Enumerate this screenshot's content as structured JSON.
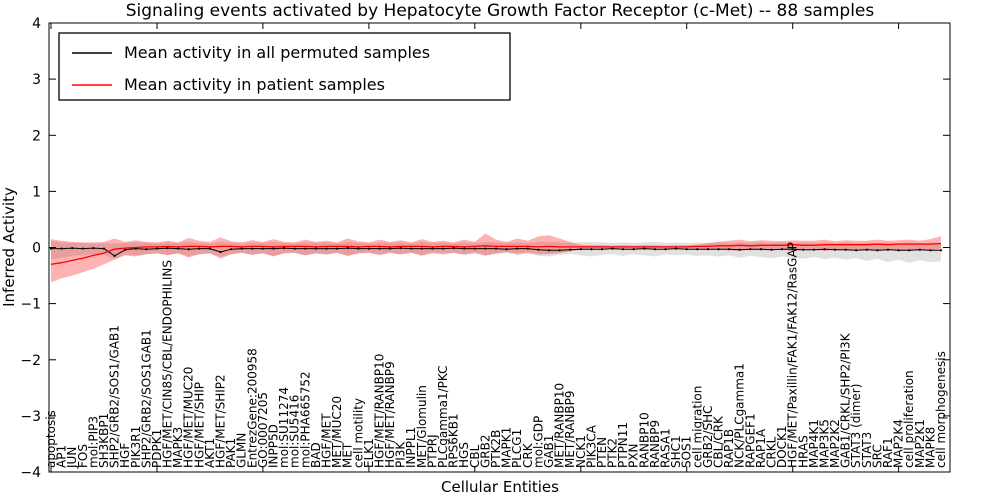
{
  "legend": {
    "items": [
      {
        "label": "Mean activity in all permuted samples",
        "color": "#000000"
      },
      {
        "label": "Mean activity in patient samples",
        "color": "#ff0000"
      }
    ]
  },
  "chart_data": {
    "type": "line",
    "title": "Signaling events activated by Hepatocyte Growth Factor Receptor (c-Met) -- 88 samples",
    "xlabel": "Cellular Entities",
    "ylabel": "Inferred Activity",
    "ylim": [
      -4,
      4
    ],
    "yticks": [
      4,
      3,
      2,
      1,
      0,
      -1,
      -2,
      -3,
      -4
    ],
    "ytick_labels": [
      "4",
      "3",
      "2",
      "1",
      "0",
      "−1",
      "−2",
      "−3",
      "−4"
    ],
    "x_major_tick_every": 10,
    "grid": false,
    "legend_position": "upper left",
    "band_colors": {
      "permuted": "#a8a8a8",
      "patient": "#ff0000"
    },
    "categories": [
      "apoptosis",
      "AP1",
      "JUN",
      "FOS",
      "mol:PIP3",
      "SH3KBP1",
      "SHP2/GRB2/SOS1/GAB1",
      "HGF",
      "PIK3R1",
      "SHP2/GRB2/SOS1GAB1",
      "PDPK1",
      "HGF/MET/CIN85/CBL/ENDOPHILINS",
      "MAPK3",
      "HGF/MET/MUC20",
      "HGF/MET/SHIP",
      "AKT1",
      "HGF/MET/SHIP2",
      "PAK1",
      "GLMN",
      "EntrezGene:200958",
      "GO:0007205",
      "INPP5D",
      "mol:SU11274",
      "mol:SU5416",
      "mol:PHA665752",
      "BAD",
      "HGF/MET",
      "MET/MUC20",
      "MET",
      "cell motility",
      "ELK1",
      "HGF/MET/RANBP10",
      "HGF/MET/RANBP9",
      "PI3K",
      "INPPL1",
      "MET/Glomulin",
      "PTPRJ",
      "PLCgamma1/PKC",
      "RPS6KB1",
      "HGS",
      "CBL",
      "GRB2",
      "PTK2B",
      "MAPK1",
      "PLCG1",
      "CRK",
      "mol:GDP",
      "GAB1",
      "MET/RANBP10",
      "MET/RANBP9",
      "NCK1",
      "PIK3CA",
      "PTEN",
      "PTK2",
      "PTPN11",
      "PXN",
      "RANBP10",
      "RANBP9",
      "RASA1",
      "SHC1",
      "SOS1",
      "cell migration",
      "GRB2/SHC",
      "CBL/CRK",
      "RAP1B",
      "NCK/PLCgamma1",
      "RAPGEF1",
      "RAP1A",
      "CRKL",
      "DOCK1",
      "HGF/MET/Paxillin/FAK1/FAK12/RasGAP",
      "HRAS",
      "MAP4K1",
      "MAP3K5",
      "MAP2K2",
      "GAB1/CRKL/SHP2/PI3K",
      "STAT3 (dimer)",
      "STAT3",
      "SRC",
      "RAF1",
      "MAP2K4",
      "cell proliferation",
      "MAP2K1",
      "MAPK8",
      "cell morphogenesis"
    ],
    "series": [
      {
        "name": "Mean activity in all permuted samples",
        "color": "#000000",
        "markers": true,
        "values": [
          -0.02,
          -0.02,
          -0.01,
          -0.02,
          -0.01,
          -0.02,
          -0.15,
          -0.04,
          -0.02,
          -0.03,
          -0.02,
          -0.01,
          -0.02,
          -0.03,
          -0.02,
          -0.02,
          -0.08,
          -0.03,
          -0.02,
          -0.02,
          -0.02,
          -0.02,
          -0.01,
          -0.02,
          -0.02,
          -0.02,
          -0.02,
          -0.02,
          -0.01,
          -0.02,
          -0.02,
          -0.02,
          -0.02,
          -0.01,
          -0.02,
          -0.02,
          -0.02,
          -0.02,
          -0.01,
          -0.02,
          -0.02,
          -0.02,
          -0.02,
          -0.03,
          -0.02,
          -0.02,
          -0.04,
          -0.05,
          -0.05,
          -0.04,
          -0.03,
          -0.03,
          -0.03,
          -0.02,
          -0.03,
          -0.03,
          -0.02,
          -0.03,
          -0.03,
          -0.02,
          -0.03,
          -0.03,
          -0.03,
          -0.03,
          -0.03,
          -0.04,
          -0.03,
          -0.03,
          -0.04,
          -0.03,
          -0.03,
          -0.04,
          -0.04,
          -0.03,
          -0.04,
          -0.04,
          -0.05,
          -0.04,
          -0.05,
          -0.04,
          -0.05,
          -0.05,
          -0.04,
          -0.05,
          -0.05
        ]
      },
      {
        "name": "Mean activity in patient samples",
        "color": "#ff0000",
        "markers": false,
        "values": [
          -0.3,
          -0.27,
          -0.23,
          -0.19,
          -0.14,
          -0.1,
          -0.03,
          -0.01,
          0.0,
          0.01,
          0.01,
          0.02,
          0.01,
          0.02,
          0.02,
          0.01,
          0.02,
          0.02,
          0.01,
          0.02,
          0.02,
          0.01,
          0.02,
          0.02,
          0.02,
          0.01,
          0.02,
          0.02,
          0.02,
          0.01,
          0.02,
          0.02,
          0.01,
          0.02,
          0.02,
          0.02,
          0.01,
          0.02,
          0.02,
          0.01,
          0.02,
          0.03,
          0.02,
          0.02,
          0.02,
          0.02,
          0.01,
          0.02,
          0.01,
          0.01,
          0.01,
          0.01,
          0.01,
          0.01,
          0.01,
          0.01,
          0.01,
          0.01,
          0.01,
          0.01,
          0.01,
          0.02,
          0.02,
          0.03,
          0.03,
          0.04,
          0.03,
          0.04,
          0.04,
          0.04,
          0.05,
          0.04,
          0.04,
          0.05,
          0.05,
          0.05,
          0.05,
          0.05,
          0.06,
          0.05,
          0.06,
          0.06,
          0.06,
          0.06,
          0.07
        ]
      }
    ],
    "bands": [
      {
        "name": "permuted-range",
        "color": "#a8a8a8",
        "opacity": 0.35,
        "hi": [
          0.12,
          0.09,
          0.08,
          0.08,
          0.07,
          0.08,
          0.07,
          0.08,
          0.09,
          0.08,
          0.07,
          0.09,
          0.08,
          0.1,
          0.08,
          0.07,
          0.1,
          0.08,
          0.07,
          0.09,
          0.08,
          0.1,
          0.08,
          0.07,
          0.09,
          0.08,
          0.09,
          0.07,
          0.1,
          0.08,
          0.07,
          0.09,
          0.08,
          0.09,
          0.07,
          0.1,
          0.08,
          0.09,
          0.07,
          0.09,
          0.08,
          0.1,
          0.09,
          0.08,
          0.09,
          0.08,
          0.1,
          0.1,
          0.09,
          0.08,
          0.09,
          0.1,
          0.09,
          0.08,
          0.09,
          0.08,
          0.09,
          0.1,
          0.08,
          0.09,
          0.08,
          0.09,
          0.08,
          0.09,
          0.08,
          0.09,
          0.08,
          0.09,
          0.08,
          0.09,
          0.08,
          0.09,
          0.08,
          0.09,
          0.08,
          0.09,
          0.08,
          0.09,
          0.08,
          0.09,
          0.08,
          0.09,
          0.08,
          0.09,
          0.09
        ],
        "lo": [
          -0.22,
          -0.18,
          -0.15,
          -0.14,
          -0.12,
          -0.13,
          -0.2,
          -0.12,
          -0.14,
          -0.12,
          -0.11,
          -0.13,
          -0.11,
          -0.15,
          -0.12,
          -0.11,
          -0.16,
          -0.12,
          -0.1,
          -0.13,
          -0.11,
          -0.15,
          -0.11,
          -0.1,
          -0.14,
          -0.11,
          -0.13,
          -0.1,
          -0.15,
          -0.11,
          -0.1,
          -0.14,
          -0.1,
          -0.13,
          -0.1,
          -0.15,
          -0.11,
          -0.13,
          -0.1,
          -0.14,
          -0.11,
          -0.15,
          -0.12,
          -0.1,
          -0.14,
          -0.11,
          -0.15,
          -0.16,
          -0.13,
          -0.11,
          -0.14,
          -0.16,
          -0.13,
          -0.12,
          -0.15,
          -0.12,
          -0.14,
          -0.16,
          -0.12,
          -0.14,
          -0.13,
          -0.15,
          -0.14,
          -0.16,
          -0.14,
          -0.18,
          -0.15,
          -0.17,
          -0.19,
          -0.16,
          -0.18,
          -0.2,
          -0.17,
          -0.21,
          -0.18,
          -0.22,
          -0.19,
          -0.24,
          -0.2,
          -0.26,
          -0.22,
          -0.27,
          -0.23,
          -0.26,
          -0.25
        ]
      },
      {
        "name": "patient-range",
        "color": "#ff0000",
        "opacity": 0.3,
        "hi": [
          0.15,
          0.12,
          0.1,
          0.09,
          0.09,
          0.1,
          0.16,
          0.1,
          0.13,
          0.1,
          0.09,
          0.12,
          0.09,
          0.17,
          0.12,
          0.1,
          0.18,
          0.11,
          0.09,
          0.13,
          0.1,
          0.15,
          0.1,
          0.09,
          0.14,
          0.1,
          0.12,
          0.09,
          0.16,
          0.11,
          0.09,
          0.14,
          0.1,
          0.13,
          0.09,
          0.15,
          0.1,
          0.12,
          0.09,
          0.14,
          0.1,
          0.25,
          0.14,
          0.1,
          0.16,
          0.12,
          0.2,
          0.22,
          0.16,
          0.1,
          0.05,
          0.04,
          0.04,
          0.03,
          0.04,
          0.03,
          0.04,
          0.04,
          0.03,
          0.04,
          0.04,
          0.05,
          0.08,
          0.1,
          0.12,
          0.14,
          0.11,
          0.13,
          0.12,
          0.11,
          0.13,
          0.12,
          0.12,
          0.14,
          0.11,
          0.13,
          0.12,
          0.12,
          0.14,
          0.12,
          0.13,
          0.14,
          0.12,
          0.15,
          0.2
        ],
        "lo": [
          -0.62,
          -0.55,
          -0.5,
          -0.44,
          -0.38,
          -0.3,
          -0.22,
          -0.14,
          -0.16,
          -0.12,
          -0.1,
          -0.14,
          -0.1,
          -0.18,
          -0.12,
          -0.1,
          -0.2,
          -0.12,
          -0.09,
          -0.13,
          -0.1,
          -0.16,
          -0.1,
          -0.09,
          -0.14,
          -0.1,
          -0.12,
          -0.09,
          -0.15,
          -0.1,
          -0.09,
          -0.13,
          -0.09,
          -0.12,
          -0.09,
          -0.14,
          -0.09,
          -0.11,
          -0.09,
          -0.12,
          -0.09,
          -0.14,
          -0.1,
          -0.08,
          -0.11,
          -0.09,
          -0.12,
          -0.12,
          -0.1,
          -0.07,
          -0.03,
          -0.02,
          -0.02,
          -0.02,
          -0.02,
          -0.02,
          -0.02,
          -0.02,
          -0.02,
          -0.02,
          -0.02,
          -0.02,
          -0.03,
          -0.04,
          -0.05,
          -0.06,
          -0.04,
          -0.05,
          -0.05,
          -0.04,
          -0.06,
          -0.05,
          -0.04,
          -0.06,
          -0.04,
          -0.05,
          -0.05,
          -0.04,
          -0.06,
          -0.05,
          -0.05,
          -0.06,
          -0.04,
          -0.05,
          -0.02
        ]
      }
    ]
  }
}
